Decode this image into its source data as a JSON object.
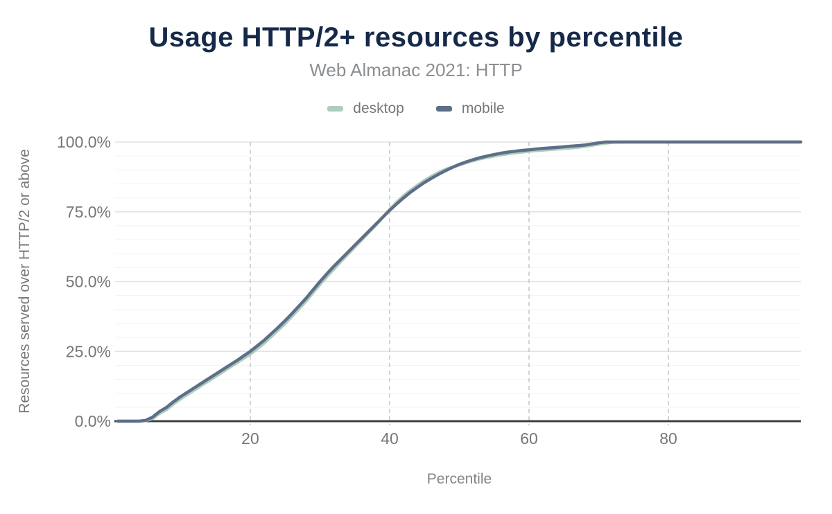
{
  "colors": {
    "title": "#16294a",
    "subtitle": "#8b8f93",
    "axis_text": "#73777a",
    "axis_line": "#3d4043",
    "grid_major": "#e2e2e2",
    "grid_minor": "#f3f3f3",
    "grid_vertical": "#c9c9c9",
    "desktop": "#aecdbc",
    "mobile": "#5d6f88"
  },
  "chart_data": {
    "type": "line",
    "title": "Usage HTTP/2+ resources by percentile",
    "subtitle": "Web Almanac 2021: HTTP",
    "xlabel": "Percentile",
    "ylabel": "Resources served over HTTP/2 or above",
    "legend_position": "top",
    "grid": {
      "horizontal_minor_step": 5,
      "horizontal_major_step": 25,
      "vertical_dashed_at_x_ticks": true
    },
    "xlim": [
      1,
      100
    ],
    "ylim": [
      0,
      100
    ],
    "x_ticks": {
      "values": [
        20,
        40,
        60,
        80
      ],
      "labels": [
        "20",
        "40",
        "60",
        "80"
      ]
    },
    "y_ticks": {
      "values": [
        0,
        25,
        50,
        75,
        100
      ],
      "labels": [
        "0.0%",
        "25.0%",
        "50.0%",
        "75.0%",
        "100.0%"
      ]
    },
    "x_percentiles": {
      "start": 1,
      "end": 100,
      "step": 1
    },
    "series": [
      {
        "name": "desktop",
        "color": "#aecdbc",
        "values": [
          0,
          0,
          0,
          0,
          0.2,
          1,
          2.8,
          4.2,
          6.2,
          8,
          9.6,
          11.2,
          12.8,
          14.4,
          16,
          17.6,
          19.2,
          20.8,
          22.4,
          24,
          26,
          28,
          30.3,
          32.6,
          35,
          37.6,
          40.3,
          43,
          46,
          49,
          51.8,
          54.5,
          57.2,
          59.8,
          62.4,
          65,
          67.6,
          70.2,
          73,
          75.8,
          78.4,
          80.7,
          82.7,
          84.5,
          86.2,
          87.7,
          89,
          90.2,
          91,
          91.8,
          92.6,
          93.3,
          94,
          94.5,
          95,
          95.4,
          95.8,
          96.1,
          96.4,
          96.7,
          96.9,
          97.1,
          97.3,
          97.5,
          97.7,
          97.9,
          98.1,
          98.4,
          98.8,
          99.2,
          99.6,
          99.9,
          100,
          100,
          100,
          100,
          100,
          100,
          100,
          100,
          100,
          100,
          100,
          100,
          100,
          100,
          100,
          100,
          100,
          100,
          100,
          100,
          100,
          100,
          100,
          100,
          100,
          100,
          100,
          100
        ]
      },
      {
        "name": "mobile",
        "color": "#5d6f88",
        "values": [
          0,
          0,
          0,
          0,
          0.3,
          1.5,
          3.5,
          5,
          7,
          8.8,
          10.4,
          12,
          13.6,
          15.2,
          16.8,
          18.4,
          20,
          21.6,
          23.3,
          25,
          27,
          29,
          31.3,
          33.6,
          36,
          38.6,
          41.3,
          44,
          47,
          50,
          52.8,
          55.5,
          58,
          60.5,
          63,
          65.5,
          68,
          70.5,
          73,
          75.5,
          77.8,
          80,
          82,
          83.8,
          85.5,
          87,
          88.4,
          89.7,
          90.9,
          92,
          92.9,
          93.7,
          94.4,
          95,
          95.5,
          96,
          96.4,
          96.7,
          97,
          97.2,
          97.5,
          97.7,
          97.9,
          98.1,
          98.3,
          98.5,
          98.7,
          98.9,
          99.3,
          99.7,
          100,
          100,
          100,
          100,
          100,
          100,
          100,
          100,
          100,
          100,
          100,
          100,
          100,
          100,
          100,
          100,
          100,
          100,
          100,
          100,
          100,
          100,
          100,
          100,
          100,
          100,
          100,
          100,
          100,
          100
        ]
      }
    ]
  }
}
